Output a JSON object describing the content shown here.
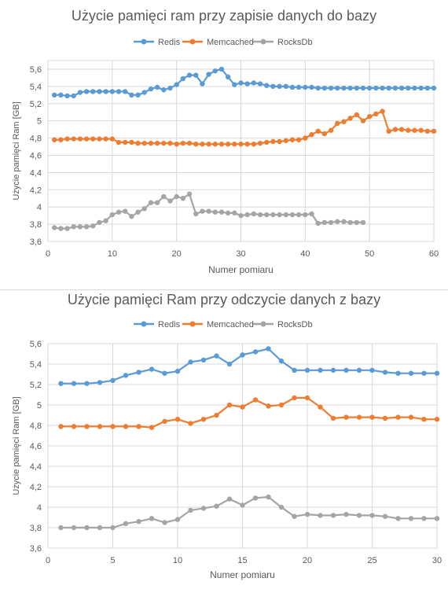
{
  "colors": {
    "redis": "#5B9BD5",
    "memcached": "#ED7D31",
    "rocksdb": "#A5A5A5",
    "grid": "#D9D9D9",
    "text": "#595959"
  },
  "chart_data": [
    {
      "type": "line",
      "title": "Użycie pamięci ram przy zapisie danych do bazy",
      "xlabel": "Numer pomiaru",
      "ylabel": "Użycie pamięci Ram [GB]",
      "xlim": [
        0,
        60
      ],
      "ylim": [
        3.6,
        5.7
      ],
      "xticks": [
        0,
        10,
        20,
        30,
        40,
        50,
        60
      ],
      "yticks": [
        3.6,
        3.8,
        4.0,
        4.2,
        4.4,
        4.6,
        4.8,
        5.0,
        5.2,
        5.4,
        5.6
      ],
      "ytick_labels": [
        "3,6",
        "3,8",
        "4",
        "4,2",
        "4,4",
        "4,6",
        "4,8",
        "5",
        "5,2",
        "5,4",
        "5,6"
      ],
      "grid": true,
      "legend": "top",
      "series": [
        {
          "name": "Redis",
          "color": "#5B9BD5",
          "x": [
            1,
            2,
            3,
            4,
            5,
            6,
            7,
            8,
            9,
            10,
            11,
            12,
            13,
            14,
            15,
            16,
            17,
            18,
            19,
            20,
            21,
            22,
            23,
            24,
            25,
            26,
            27,
            28,
            29,
            30,
            31,
            32,
            33,
            34,
            35,
            36,
            37,
            38,
            39,
            40,
            41,
            42,
            43,
            44,
            45,
            46,
            47,
            48,
            49,
            50,
            51,
            52,
            53,
            54,
            55,
            56,
            57,
            58,
            59,
            60
          ],
          "values": [
            5.3,
            5.3,
            5.29,
            5.29,
            5.33,
            5.34,
            5.34,
            5.34,
            5.34,
            5.34,
            5.34,
            5.34,
            5.3,
            5.3,
            5.33,
            5.37,
            5.39,
            5.36,
            5.38,
            5.42,
            5.49,
            5.53,
            5.53,
            5.43,
            5.54,
            5.58,
            5.6,
            5.51,
            5.42,
            5.44,
            5.43,
            5.44,
            5.43,
            5.41,
            5.4,
            5.4,
            5.4,
            5.39,
            5.39,
            5.39,
            5.39,
            5.38,
            5.38,
            5.38,
            5.38,
            5.38,
            5.38,
            5.38,
            5.38,
            5.38,
            5.38,
            5.38,
            5.38,
            5.38,
            5.38,
            5.38,
            5.38,
            5.38,
            5.38,
            5.38
          ]
        },
        {
          "name": "Memcached",
          "color": "#ED7D31",
          "x": [
            1,
            2,
            3,
            4,
            5,
            6,
            7,
            8,
            9,
            10,
            11,
            12,
            13,
            14,
            15,
            16,
            17,
            18,
            19,
            20,
            21,
            22,
            23,
            24,
            25,
            26,
            27,
            28,
            29,
            30,
            31,
            32,
            33,
            34,
            35,
            36,
            37,
            38,
            39,
            40,
            41,
            42,
            43,
            44,
            45,
            46,
            47,
            48,
            49,
            50,
            51,
            52,
            53,
            54,
            55,
            56,
            57,
            58,
            59,
            60
          ],
          "values": [
            4.78,
            4.78,
            4.79,
            4.79,
            4.79,
            4.79,
            4.79,
            4.79,
            4.79,
            4.79,
            4.75,
            4.75,
            4.75,
            4.74,
            4.74,
            4.74,
            4.74,
            4.74,
            4.74,
            4.73,
            4.74,
            4.74,
            4.73,
            4.73,
            4.73,
            4.73,
            4.73,
            4.73,
            4.73,
            4.73,
            4.73,
            4.73,
            4.74,
            4.75,
            4.76,
            4.76,
            4.77,
            4.78,
            4.78,
            4.8,
            4.84,
            4.88,
            4.85,
            4.89,
            4.97,
            4.99,
            5.03,
            5.07,
            5.0,
            5.05,
            5.08,
            5.11,
            4.88,
            4.9,
            4.9,
            4.89,
            4.89,
            4.89,
            4.88,
            4.88
          ]
        },
        {
          "name": "RocksDb",
          "color": "#A5A5A5",
          "x": [
            1,
            2,
            3,
            4,
            5,
            6,
            7,
            8,
            9,
            10,
            11,
            12,
            13,
            14,
            15,
            16,
            17,
            18,
            19,
            20,
            21,
            22,
            23,
            24,
            25,
            26,
            27,
            28,
            29,
            30,
            31,
            32,
            33,
            34,
            35,
            36,
            37,
            38,
            39,
            40,
            41,
            42,
            43,
            44,
            45,
            46,
            47,
            48,
            49
          ],
          "values": [
            3.76,
            3.75,
            3.75,
            3.77,
            3.77,
            3.77,
            3.78,
            3.82,
            3.84,
            3.91,
            3.94,
            3.95,
            3.89,
            3.94,
            3.98,
            4.05,
            4.05,
            4.12,
            4.07,
            4.12,
            4.1,
            4.15,
            3.92,
            3.95,
            3.95,
            3.94,
            3.94,
            3.93,
            3.93,
            3.9,
            3.91,
            3.92,
            3.91,
            3.91,
            3.91,
            3.91,
            3.91,
            3.91,
            3.91,
            3.91,
            3.92,
            3.81,
            3.82,
            3.82,
            3.83,
            3.83,
            3.82,
            3.82,
            3.82
          ]
        }
      ]
    },
    {
      "type": "line",
      "title": "Użycie pamięci Ram przy odczycie danych z bazy",
      "xlabel": "Numer pomiaru",
      "ylabel": "Użycie pamięci Ram [GB]",
      "xlim": [
        0,
        30
      ],
      "ylim": [
        3.6,
        5.6
      ],
      "xticks": [
        0,
        5,
        10,
        15,
        20,
        25,
        30
      ],
      "yticks": [
        3.6,
        3.8,
        4.0,
        4.2,
        4.4,
        4.6,
        4.8,
        5.0,
        5.2,
        5.4,
        5.6
      ],
      "ytick_labels": [
        "3,6",
        "3,8",
        "4",
        "4,2",
        "4,4",
        "4,6",
        "4,8",
        "5",
        "5,2",
        "5,4",
        "5,6"
      ],
      "grid": true,
      "legend": "top",
      "series": [
        {
          "name": "Redis",
          "color": "#5B9BD5",
          "x": [
            1,
            2,
            3,
            4,
            5,
            6,
            7,
            8,
            9,
            10,
            11,
            12,
            13,
            14,
            15,
            16,
            17,
            18,
            19,
            20,
            21,
            22,
            23,
            24,
            25,
            26,
            27,
            28,
            29,
            30
          ],
          "values": [
            5.21,
            5.21,
            5.21,
            5.22,
            5.24,
            5.29,
            5.32,
            5.35,
            5.31,
            5.33,
            5.42,
            5.44,
            5.48,
            5.4,
            5.49,
            5.52,
            5.55,
            5.43,
            5.34,
            5.34,
            5.34,
            5.34,
            5.34,
            5.34,
            5.34,
            5.32,
            5.31,
            5.31,
            5.31,
            5.31
          ]
        },
        {
          "name": "Memcached",
          "color": "#ED7D31",
          "x": [
            1,
            2,
            3,
            4,
            5,
            6,
            7,
            8,
            9,
            10,
            11,
            12,
            13,
            14,
            15,
            16,
            17,
            18,
            19,
            20,
            21,
            22,
            23,
            24,
            25,
            26,
            27,
            28,
            29,
            30
          ],
          "values": [
            4.79,
            4.79,
            4.79,
            4.79,
            4.79,
            4.79,
            4.79,
            4.78,
            4.84,
            4.86,
            4.82,
            4.86,
            4.9,
            5.0,
            4.98,
            5.05,
            4.99,
            5.0,
            5.07,
            5.07,
            4.98,
            4.87,
            4.88,
            4.88,
            4.88,
            4.87,
            4.88,
            4.88,
            4.86,
            4.86
          ]
        },
        {
          "name": "RocksDb",
          "color": "#A5A5A5",
          "x": [
            1,
            2,
            3,
            4,
            5,
            6,
            7,
            8,
            9,
            10,
            11,
            12,
            13,
            14,
            15,
            16,
            17,
            18,
            19,
            20,
            21,
            22,
            23,
            24,
            25,
            26,
            27,
            28,
            29,
            30
          ],
          "values": [
            3.8,
            3.8,
            3.8,
            3.8,
            3.8,
            3.84,
            3.86,
            3.89,
            3.85,
            3.88,
            3.97,
            3.99,
            4.01,
            4.08,
            4.02,
            4.09,
            4.1,
            4.0,
            3.91,
            3.93,
            3.92,
            3.92,
            3.93,
            3.92,
            3.92,
            3.91,
            3.89,
            3.89,
            3.89,
            3.89
          ]
        }
      ]
    }
  ]
}
